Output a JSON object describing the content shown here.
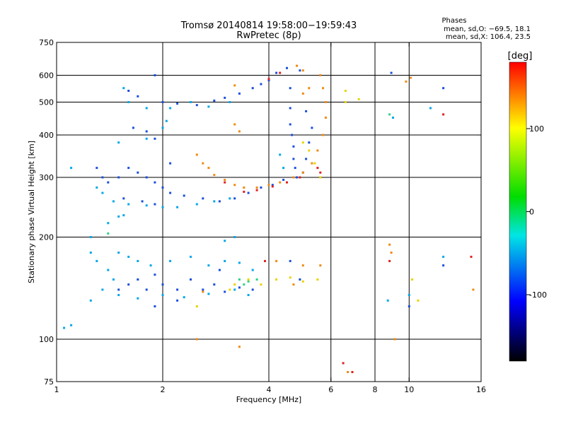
{
  "header": {
    "title_line1": "Tromsø 20140814 19:58:00−19:59:43",
    "title_line2": "RwPretec (8p)",
    "stats_heading": "Phases",
    "stats_line1": "mean, sd,O: −69.5, 18.1",
    "stats_line2": "mean, sd,X: 106.4, 23.5"
  },
  "chart_data": {
    "type": "scatter",
    "title": "Tromsø 20140814 19:58:00−19:59:43",
    "subtitle": "RwPretec (8p)",
    "xlabel": "Frequency [MHz]",
    "ylabel": "Stationary phase Virtual Height [km]",
    "x_scale": "log",
    "y_scale": "log",
    "xlim": [
      1,
      16
    ],
    "ylim": [
      75,
      750
    ],
    "x_ticks": [
      1,
      2,
      4,
      6,
      8,
      10,
      16
    ],
    "y_ticks": [
      75,
      100,
      200,
      300,
      400,
      500,
      600,
      750
    ],
    "x_gridlines": [
      2,
      4,
      6,
      8,
      10
    ],
    "y_gridlines": [
      100,
      200,
      300,
      400,
      500,
      600
    ],
    "grid": true,
    "colorbar": {
      "label": "[deg]",
      "range": [
        -180,
        180
      ],
      "ticks": [
        100,
        0,
        -100
      ],
      "stops": [
        "#ff0000",
        "#ffff00",
        "#00dd00",
        "#00e5e5",
        "#0000ff",
        "#000000"
      ]
    },
    "series": [
      {
        "phase": -100,
        "color": "#1a4fdc",
        "points": [
          [
            1.6,
            540
          ],
          [
            1.7,
            520
          ],
          [
            1.9,
            600
          ],
          [
            2.0,
            500
          ],
          [
            2.2,
            495
          ],
          [
            2.5,
            490
          ],
          [
            2.8,
            505
          ],
          [
            3.0,
            515
          ],
          [
            3.3,
            530
          ],
          [
            3.6,
            550
          ],
          [
            3.8,
            565
          ],
          [
            4.0,
            580
          ],
          [
            4.2,
            610
          ],
          [
            4.5,
            630
          ],
          [
            4.6,
            550
          ],
          [
            4.6,
            480
          ],
          [
            4.6,
            430
          ],
          [
            4.65,
            400
          ],
          [
            4.7,
            370
          ],
          [
            4.7,
            340
          ],
          [
            4.75,
            320
          ],
          [
            1.3,
            320
          ],
          [
            1.35,
            300
          ],
          [
            1.4,
            290
          ],
          [
            1.5,
            300
          ],
          [
            1.6,
            320
          ],
          [
            1.7,
            310
          ],
          [
            1.8,
            300
          ],
          [
            1.9,
            290
          ],
          [
            2.0,
            280
          ],
          [
            2.1,
            270
          ],
          [
            2.3,
            265
          ],
          [
            2.6,
            260
          ],
          [
            2.9,
            255
          ],
          [
            3.2,
            260
          ],
          [
            3.5,
            270
          ],
          [
            3.8,
            280
          ],
          [
            4.1,
            285
          ],
          [
            4.4,
            295
          ],
          [
            4.8,
            300
          ],
          [
            5.0,
            310
          ],
          [
            5.1,
            340
          ],
          [
            5.2,
            380
          ],
          [
            5.3,
            420
          ],
          [
            5.1,
            470
          ],
          [
            1.65,
            420
          ],
          [
            1.8,
            410
          ],
          [
            1.9,
            390
          ],
          [
            1.55,
            260
          ],
          [
            1.75,
            255
          ],
          [
            1.9,
            250
          ],
          [
            2.1,
            330
          ],
          [
            1.5,
            140
          ],
          [
            1.6,
            145
          ],
          [
            1.7,
            150
          ],
          [
            1.8,
            140
          ],
          [
            1.9,
            155
          ],
          [
            2.0,
            145
          ],
          [
            2.2,
            140
          ],
          [
            2.4,
            150
          ],
          [
            2.6,
            140
          ],
          [
            2.8,
            145
          ],
          [
            3.0,
            138
          ],
          [
            3.3,
            142
          ],
          [
            3.6,
            140
          ],
          [
            1.9,
            125
          ],
          [
            2.2,
            130
          ],
          [
            2.9,
            160
          ],
          [
            4.9,
            620
          ],
          [
            8.9,
            610
          ],
          [
            10.0,
            125
          ],
          [
            12.5,
            550
          ],
          [
            12.5,
            165
          ],
          [
            4.6,
            170
          ],
          [
            4.9,
            150
          ]
        ]
      },
      {
        "phase": -75,
        "color": "#00a8e8",
        "points": [
          [
            1.55,
            550
          ],
          [
            1.6,
            500
          ],
          [
            1.8,
            480
          ],
          [
            2.1,
            480
          ],
          [
            2.4,
            500
          ],
          [
            2.7,
            485
          ],
          [
            3.1,
            500
          ],
          [
            1.3,
            280
          ],
          [
            1.35,
            270
          ],
          [
            1.45,
            255
          ],
          [
            1.6,
            250
          ],
          [
            1.8,
            248
          ],
          [
            2.0,
            245
          ],
          [
            2.2,
            245
          ],
          [
            2.5,
            250
          ],
          [
            2.8,
            255
          ],
          [
            3.1,
            260
          ],
          [
            1.4,
            220
          ],
          [
            1.25,
            200
          ],
          [
            1.25,
            180
          ],
          [
            1.3,
            170
          ],
          [
            1.4,
            160
          ],
          [
            1.45,
            150
          ],
          [
            1.5,
            180
          ],
          [
            1.6,
            175
          ],
          [
            1.7,
            170
          ],
          [
            1.85,
            165
          ],
          [
            2.1,
            170
          ],
          [
            2.4,
            175
          ],
          [
            2.7,
            165
          ],
          [
            3.0,
            170
          ],
          [
            3.3,
            168
          ],
          [
            3.6,
            160
          ],
          [
            1.35,
            140
          ],
          [
            1.5,
            135
          ],
          [
            1.7,
            132
          ],
          [
            2.0,
            135
          ],
          [
            2.3,
            133
          ],
          [
            2.7,
            136
          ],
          [
            3.2,
            140
          ],
          [
            3.5,
            135
          ],
          [
            1.1,
            320
          ],
          [
            1.1,
            110
          ],
          [
            1.05,
            108
          ],
          [
            1.25,
            130
          ],
          [
            2.05,
            440
          ],
          [
            2.0,
            420
          ],
          [
            1.8,
            390
          ],
          [
            4.3,
            350
          ],
          [
            4.4,
            320
          ],
          [
            1.5,
            230
          ],
          [
            1.55,
            232
          ],
          [
            3.2,
            200
          ],
          [
            3.0,
            195
          ],
          [
            9.0,
            450
          ],
          [
            11.5,
            480
          ],
          [
            10.0,
            135
          ],
          [
            8.7,
            130
          ],
          [
            12.5,
            175
          ],
          [
            1.5,
            380
          ]
        ]
      },
      {
        "phase": 20,
        "color": "#30d088",
        "points": [
          [
            3.3,
            150
          ],
          [
            3.4,
            145
          ],
          [
            3.5,
            148
          ],
          [
            3.7,
            150
          ],
          [
            8.8,
            460
          ],
          [
            1.4,
            205
          ]
        ]
      },
      {
        "phase": 100,
        "color": "#e8d400",
        "points": [
          [
            3.2,
            145
          ],
          [
            3.5,
            150
          ],
          [
            3.8,
            145
          ],
          [
            4.2,
            150
          ],
          [
            4.6,
            152
          ],
          [
            5.0,
            148
          ],
          [
            5.5,
            150
          ],
          [
            3.1,
            140
          ],
          [
            6.6,
            540
          ],
          [
            10.2,
            150
          ],
          [
            10.6,
            130
          ],
          [
            6.6,
            500
          ],
          [
            7.2,
            510
          ],
          [
            2.5,
            125
          ],
          [
            5.0,
            380
          ],
          [
            5.2,
            360
          ],
          [
            5.4,
            330
          ],
          [
            5.6,
            300
          ]
        ]
      },
      {
        "phase": 140,
        "color": "#f08a10",
        "points": [
          [
            2.5,
            350
          ],
          [
            2.6,
            330
          ],
          [
            2.7,
            320
          ],
          [
            2.8,
            305
          ],
          [
            3.0,
            295
          ],
          [
            3.2,
            285
          ],
          [
            3.4,
            280
          ],
          [
            3.7,
            280
          ],
          [
            4.0,
            285
          ],
          [
            4.3,
            290
          ],
          [
            4.7,
            300
          ],
          [
            5.0,
            310
          ],
          [
            5.3,
            330
          ],
          [
            5.5,
            360
          ],
          [
            5.7,
            400
          ],
          [
            5.8,
            450
          ],
          [
            5.8,
            500
          ],
          [
            5.7,
            550
          ],
          [
            5.6,
            600
          ],
          [
            5.0,
            620
          ],
          [
            4.8,
            640
          ],
          [
            3.2,
            560
          ],
          [
            3.2,
            430
          ],
          [
            3.3,
            410
          ],
          [
            8.8,
            190
          ],
          [
            8.9,
            180
          ],
          [
            9.1,
            100
          ],
          [
            6.7,
            80
          ],
          [
            2.5,
            100
          ],
          [
            3.3,
            95
          ],
          [
            15.2,
            140
          ],
          [
            4.2,
            170
          ],
          [
            5.0,
            165
          ],
          [
            5.6,
            165
          ],
          [
            4.7,
            145
          ],
          [
            9.8,
            575
          ],
          [
            10.1,
            590
          ],
          [
            2.6,
            138
          ],
          [
            5.2,
            550
          ],
          [
            5.0,
            530
          ]
        ]
      },
      {
        "phase": 170,
        "color": "#e02020",
        "points": [
          [
            3.0,
            290
          ],
          [
            3.4,
            272
          ],
          [
            3.7,
            275
          ],
          [
            4.1,
            282
          ],
          [
            4.5,
            290
          ],
          [
            4.9,
            300
          ],
          [
            5.5,
            320
          ],
          [
            5.6,
            310
          ],
          [
            6.5,
            85
          ],
          [
            6.9,
            80
          ],
          [
            8.8,
            170
          ],
          [
            12.5,
            460
          ],
          [
            15.0,
            175
          ],
          [
            4.0,
            585
          ],
          [
            4.3,
            610
          ],
          [
            3.9,
            170
          ]
        ]
      }
    ]
  }
}
